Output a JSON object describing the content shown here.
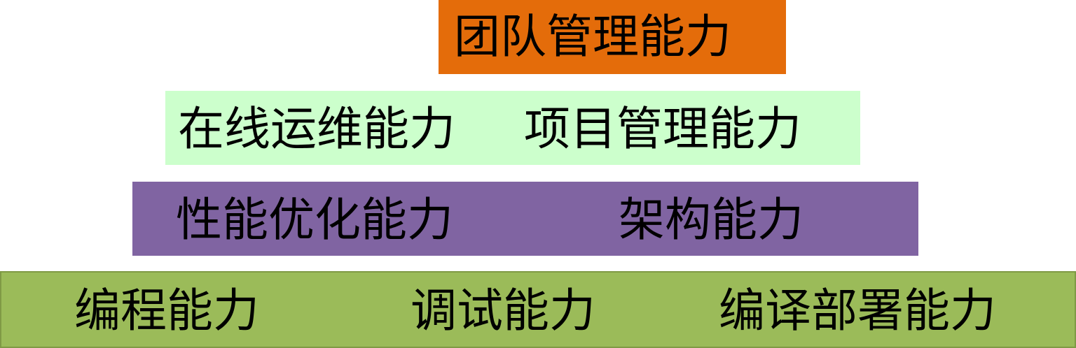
{
  "colors": {
    "tier_1": "#E46C0A",
    "tier_2": "#CCFFCC",
    "tier_3": "#8064A2",
    "tier_4": "#9BBB59"
  },
  "pyramid": {
    "tier_1": {
      "items": [
        "团队管理能力"
      ]
    },
    "tier_2": {
      "items": [
        "在线运维能力",
        "项目管理能力"
      ]
    },
    "tier_3": {
      "items": [
        "性能优化能力",
        "架构能力"
      ]
    },
    "tier_4": {
      "items": [
        "编程能力",
        "调试能力",
        "编译部署能力"
      ]
    }
  }
}
